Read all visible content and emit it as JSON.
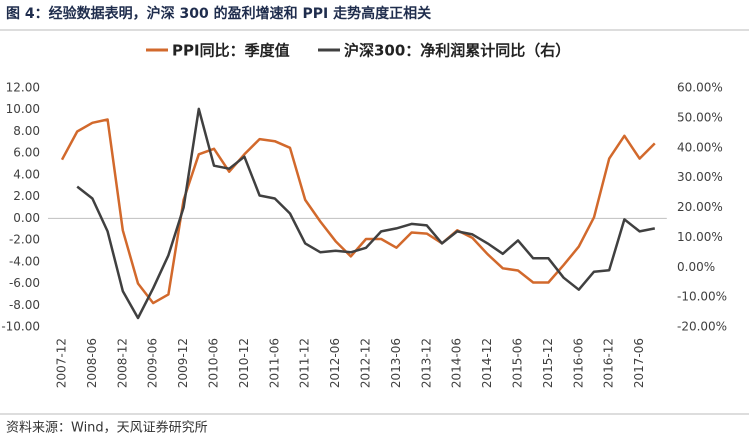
{
  "page_title": "图 4：经验数据表明，沪深 300 的盈利增速和 PPI 走势高度正相关",
  "source": "资料来源：Wind，天风证券研究所",
  "chart_data": {
    "type": "line",
    "categories": [
      "2007-12",
      null,
      "2008-06",
      null,
      "2008-12",
      null,
      "2009-06",
      null,
      "2009-12",
      null,
      "2010-06",
      null,
      "2010-12",
      null,
      "2011-06",
      null,
      "2011-12",
      null,
      "2012-06",
      null,
      "2012-12",
      null,
      "2013-06",
      null,
      "2013-12",
      null,
      "2014-06",
      null,
      "2014-12",
      null,
      "2015-06",
      null,
      "2015-12",
      null,
      "2016-06",
      null,
      "2016-12",
      null,
      "2017-06",
      null
    ],
    "series": [
      {
        "name": "PPI同比：季度值",
        "color": "#d2692c",
        "values": [
          5.4,
          8.0,
          8.8,
          9.1,
          -1.1,
          -6.0,
          -7.8,
          -7.0,
          1.7,
          5.9,
          6.4,
          4.3,
          5.9,
          7.3,
          7.1,
          6.5,
          1.7,
          -0.3,
          -2.1,
          -3.5,
          -1.9,
          -1.9,
          -2.7,
          -1.3,
          -1.4,
          -2.3,
          -1.1,
          -1.8,
          -3.3,
          -4.6,
          -4.8,
          -5.9,
          -5.9,
          -4.3,
          -2.6,
          0.1,
          5.5,
          7.6,
          5.5,
          6.9
        ]
      },
      {
        "name": "沪深300：净利润累计同比（右）",
        "color": "#404040",
        "axis": "y2",
        "values": [
          null,
          27,
          23,
          12,
          -8,
          -17,
          -7,
          4,
          20,
          53,
          34,
          33,
          37,
          24,
          23,
          18,
          8,
          5,
          5.5,
          5,
          6.5,
          12,
          13,
          14.5,
          14,
          8,
          12,
          11,
          8,
          4.5,
          9,
          3,
          3,
          -3.5,
          -7.5,
          -1.5,
          -1,
          16,
          12,
          13
        ]
      }
    ],
    "ylim": [
      -10,
      12
    ],
    "yticks": [
      {
        "value": 12,
        "label": "12.00"
      },
      {
        "value": 10,
        "label": "10.00"
      },
      {
        "value": 8,
        "label": "8.00"
      },
      {
        "value": 6,
        "label": "6.00"
      },
      {
        "value": 4,
        "label": "4.00"
      },
      {
        "value": 2,
        "label": "2.00"
      },
      {
        "value": 0,
        "label": "0.00"
      },
      {
        "value": -2,
        "label": "-2.00"
      },
      {
        "value": -4,
        "label": "-4.00"
      },
      {
        "value": -6,
        "label": "-6.00"
      },
      {
        "value": -8,
        "label": "-8.00"
      },
      {
        "value": -10,
        "label": "-10.00"
      }
    ],
    "y2lim": [
      -20,
      60
    ],
    "y2ticks": [
      {
        "value": 60,
        "label": "60.00%"
      },
      {
        "value": 50,
        "label": "50.00%"
      },
      {
        "value": 40,
        "label": "40.00%"
      },
      {
        "value": 30,
        "label": "30.00%"
      },
      {
        "value": 20,
        "label": "20.00%"
      },
      {
        "value": 10,
        "label": "10.00%"
      },
      {
        "value": 0,
        "label": "0.00%"
      },
      {
        "value": -10,
        "label": "-10.00%"
      },
      {
        "value": -20,
        "label": "-20.00%"
      }
    ]
  }
}
